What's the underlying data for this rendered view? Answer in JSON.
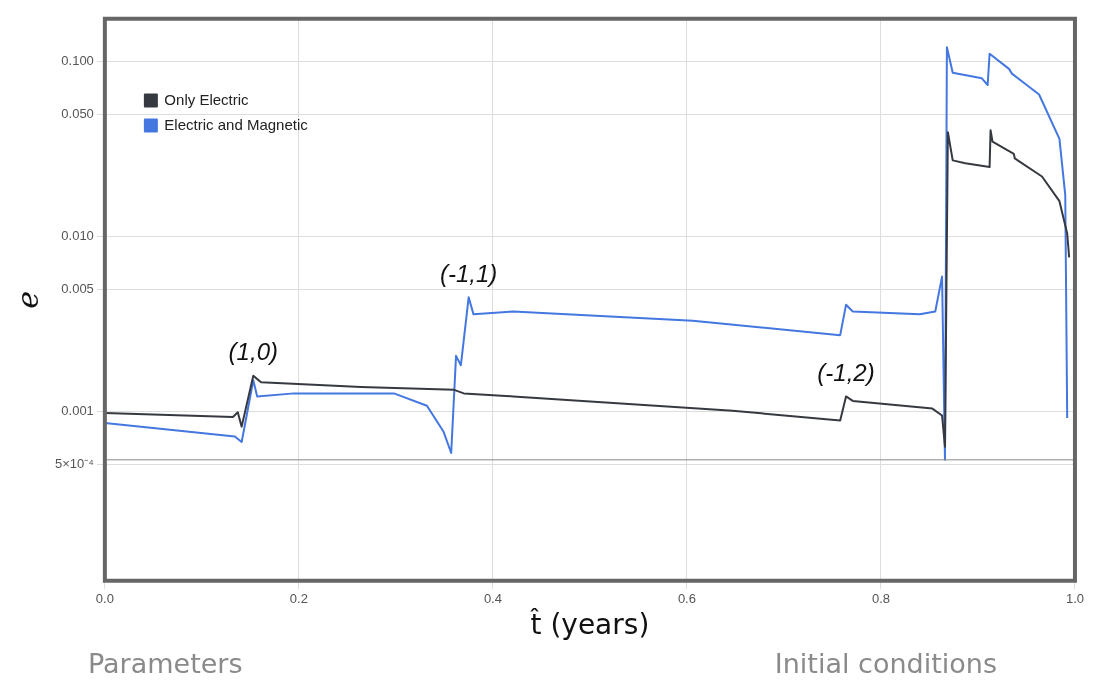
{
  "chart_data": {
    "type": "line",
    "xlabel": "t̂ (years)",
    "ylabel": "e",
    "log": "y",
    "grid": true,
    "legend": "top left",
    "marker": "none",
    "line_style": "solid",
    "xlim": [
      0,
      1
    ],
    "xticks": [
      {
        "value": 0,
        "label": "0.0"
      },
      0.2,
      0.4,
      0.6,
      0.8,
      {
        "value": 1,
        "label": "1.0"
      }
    ],
    "ylim": [
      0.000108,
      0.175
    ],
    "yticks": [
      {
        "value": 0.0005,
        "label": "5×10⁻⁴"
      },
      {
        "value": 0.001,
        "label": "0.001"
      },
      {
        "value": 0.005,
        "label": "0.005"
      },
      {
        "value": 0.01,
        "label": "0.010"
      },
      {
        "value": 0.05,
        "label": "0.050"
      },
      {
        "value": 0.1,
        "label": "0.100"
      }
    ],
    "ref_lines": [
      {
        "axis": "y",
        "value": 0.00053,
        "color": "#888888"
      }
    ],
    "series": [
      {
        "name": "Only Electric",
        "color": "#363a40",
        "x": [
          0,
          0.132,
          0.137,
          0.141,
          0.153,
          0.161,
          0.264,
          0.36,
          0.37,
          0.421,
          0.647,
          0.758,
          0.764,
          0.771,
          0.853,
          0.863,
          0.866,
          0.869,
          0.874,
          0.887,
          0.912,
          0.913,
          0.915,
          0.937,
          0.938,
          0.966,
          0.984,
          0.992,
          0.994
        ],
        "values": [
          0.00098,
          0.00093,
          0.00099,
          0.00082,
          0.0016,
          0.00147,
          0.00138,
          0.00133,
          0.00127,
          0.00122,
          0.00101,
          0.00089,
          0.00122,
          0.00115,
          0.00104,
          0.00095,
          0.00063,
          0.0394,
          0.0272,
          0.0262,
          0.0249,
          0.0404,
          0.0348,
          0.0296,
          0.0279,
          0.022,
          0.0159,
          0.0104,
          0.0076
        ]
      },
      {
        "name": "Electric and Magnetic",
        "color": "#4477e0",
        "x": [
          0,
          0.134,
          0.141,
          0.153,
          0.157,
          0.195,
          0.298,
          0.332,
          0.349,
          0.357,
          0.362,
          0.367,
          0.375,
          0.38,
          0.421,
          0.606,
          0.758,
          0.764,
          0.771,
          0.84,
          0.856,
          0.863,
          0.866,
          0.868,
          0.874,
          0.904,
          0.91,
          0.912,
          0.932,
          0.935,
          0.963,
          0.984,
          0.99,
          0.992
        ],
        "values": [
          0.00086,
          0.00072,
          0.00067,
          0.00151,
          0.00122,
          0.00127,
          0.00127,
          0.00108,
          0.00077,
          0.00058,
          0.00208,
          0.00184,
          0.00449,
          0.00359,
          0.00373,
          0.0033,
          0.00273,
          0.00407,
          0.00373,
          0.00359,
          0.00373,
          0.0059,
          0.00053,
          0.1205,
          0.0861,
          0.08,
          0.0733,
          0.1104,
          0.0906,
          0.0851,
          0.0647,
          0.0361,
          0.0172,
          0.00092
        ]
      }
    ],
    "annotations": [
      {
        "text": "(1,0)",
        "x": 0.153,
        "y": 0.0016
      },
      {
        "text": "(-1,1)",
        "x": 0.375,
        "y": 0.00449
      },
      {
        "text": "(-1,2)",
        "x": 0.764,
        "y": 0.00122
      },
      "Parameters",
      "Initial conditions"
    ]
  }
}
